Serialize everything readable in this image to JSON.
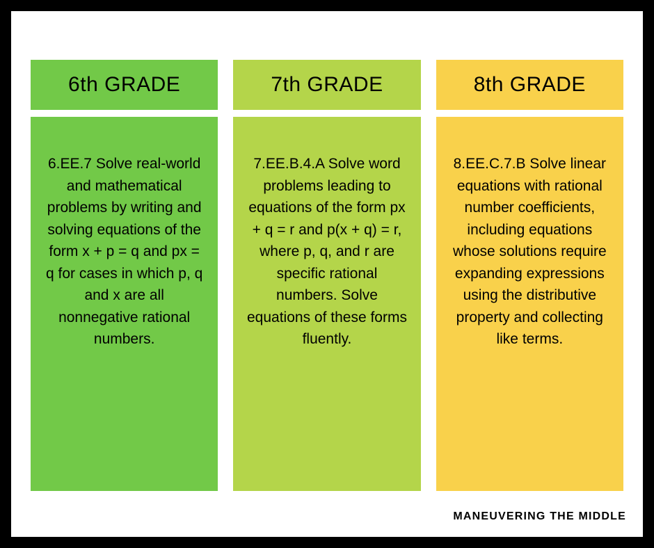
{
  "columns": [
    {
      "title": "6th GRADE",
      "header_bg": "#72c948",
      "body_bg": "#72c948",
      "text": "6.EE.7 Solve real-world and mathematical problems by writing and solving equations of the form x + p = q and px = q for cases in which p, q and x are all nonnegative rational numbers."
    },
    {
      "title": "7th GRADE",
      "header_bg": "#b4d54a",
      "body_bg": "#b4d54a",
      "text": "7.EE.B.4.A Solve word problems leading to equations of the form\npx + q = r and p(x + q) = r, where p, q, and r are specific rational numbers. Solve equations of these forms fluently."
    },
    {
      "title": "8th GRADE",
      "header_bg": "#f9d14b",
      "body_bg": "#f9d14b",
      "text": "8.EE.C.7.B Solve linear equations with rational number coefficients, including equations whose solutions require expanding expressions using the distributive property and collecting like terms."
    }
  ],
  "footer": "MANEUVERING THE MIDDLE",
  "page_bg": "#ffffff",
  "outer_bg": "#000000",
  "text_color": "#000000",
  "header_fontsize": 30,
  "body_fontsize": 21
}
